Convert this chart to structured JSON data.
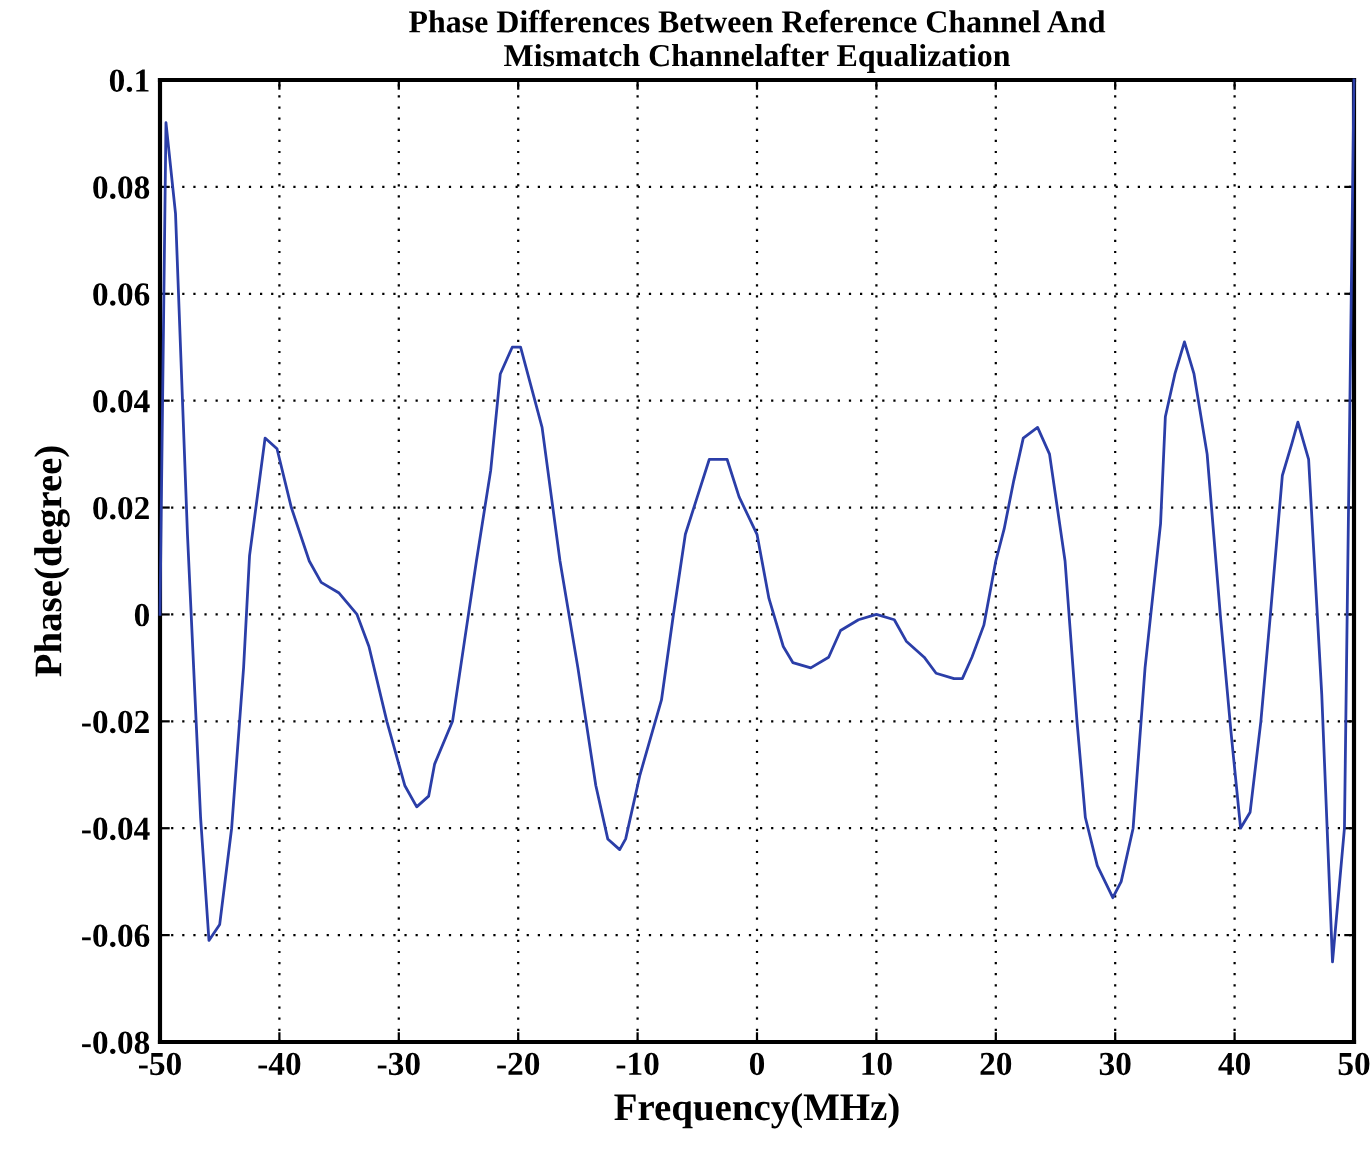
{
  "chart_data": {
    "type": "line",
    "title": "Phase Differences Between Reference Channel And\nMismatch Channelafter Equalization",
    "xlabel": "Frequency(MHz)",
    "ylabel": "Phase(degree)",
    "xlim": [
      -50,
      50
    ],
    "xticks": [
      -50,
      -40,
      -30,
      -20,
      -10,
      0,
      10,
      20,
      30,
      40,
      50
    ],
    "ylim": [
      -0.08,
      0.1
    ],
    "yticks": [
      {
        "value": -0.08,
        "label": "-0.08"
      },
      {
        "value": -0.06,
        "label": "-0.06"
      },
      {
        "value": -0.04,
        "label": "-0.04"
      },
      {
        "value": -0.02,
        "label": "-0.02"
      },
      {
        "value": 0,
        "label": "0"
      },
      {
        "value": 0.02,
        "label": "0.02"
      },
      {
        "value": 0.04,
        "label": "0.04"
      },
      {
        "value": 0.06,
        "label": "0.06"
      },
      {
        "value": 0.08,
        "label": "0.08"
      },
      {
        "value": 0.1,
        "label": "0.1"
      }
    ],
    "grid": true,
    "line_style": "solid",
    "marker": "none",
    "series": [
      {
        "color": "#2b3ea8",
        "x": [
          -50,
          -49.5,
          -48.7,
          -47.7,
          -46.6,
          -45.9,
          -45,
          -44,
          -43,
          -42.5,
          -41.2,
          -40.2,
          -39,
          -37.5,
          -36.5,
          -35,
          -33.5,
          -32.5,
          -31,
          -29.5,
          -28.5,
          -27.5,
          -27,
          -25.5,
          -24.5,
          -23.5,
          -22.3,
          -21.5,
          -20.5,
          -19.8,
          -18,
          -16.5,
          -15,
          -13.5,
          -12.5,
          -11.5,
          -11,
          -9.8,
          -8,
          -7,
          -6,
          -5,
          -4,
          -2.5,
          -1.5,
          0,
          1,
          2.2,
          3,
          4.5,
          6,
          7,
          8.5,
          10,
          11.5,
          12.5,
          14,
          15,
          16.5,
          17.2,
          18,
          19,
          20,
          20.7,
          21.5,
          22.3,
          23.5,
          24.5,
          25.8,
          26.8,
          27.5,
          28.5,
          29.8,
          30.5,
          31.5,
          32.5,
          33.8,
          34.2,
          35,
          35.8,
          36.6,
          37.7,
          38.8,
          39.7,
          40.5,
          41.3,
          42.2,
          43,
          44,
          44.8,
          45.3,
          46.2,
          47.3,
          48.2,
          49.2,
          50
        ],
        "values": [
          0,
          0.092,
          0.075,
          0.015,
          -0.038,
          -0.061,
          -0.058,
          -0.04,
          -0.01,
          0.011,
          0.033,
          0.031,
          0.02,
          0.01,
          0.006,
          0.004,
          0,
          -0.006,
          -0.02,
          -0.032,
          -0.036,
          -0.034,
          -0.028,
          -0.02,
          -0.005,
          0.01,
          0.027,
          0.045,
          0.05,
          0.05,
          0.035,
          0.01,
          -0.01,
          -0.032,
          -0.042,
          -0.044,
          -0.042,
          -0.03,
          -0.016,
          0,
          0.015,
          0.022,
          0.029,
          0.029,
          0.022,
          0.015,
          0.003,
          -0.006,
          -0.009,
          -0.01,
          -0.008,
          -0.003,
          -0.001,
          0,
          -0.001,
          -0.005,
          -0.008,
          -0.011,
          -0.012,
          -0.012,
          -0.008,
          -0.002,
          0.01,
          0.016,
          0.025,
          0.033,
          0.035,
          0.03,
          0.01,
          -0.02,
          -0.038,
          -0.047,
          -0.053,
          -0.05,
          -0.04,
          -0.01,
          0.017,
          0.037,
          0.045,
          0.051,
          0.045,
          0.03,
          0,
          -0.022,
          -0.04,
          -0.037,
          -0.02,
          0,
          0.026,
          0.032,
          0.036,
          0.029,
          -0.015,
          -0.065,
          -0.04,
          0.1
        ]
      }
    ]
  }
}
